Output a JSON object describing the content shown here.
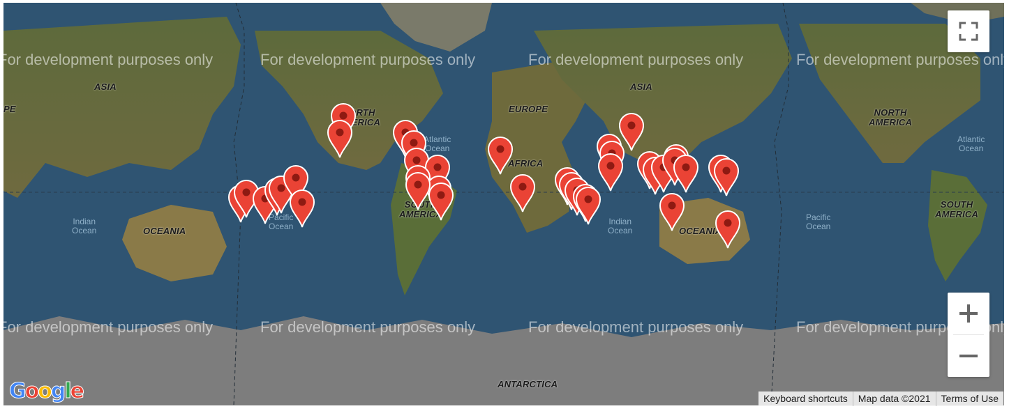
{
  "map": {
    "watermark": "For development purposes only",
    "continent_labels": {
      "asia": "ASIA",
      "europe_partial": "PE",
      "north_america": "NORTH\nAMERICA",
      "south_america": "SOUTH\nAMERICA",
      "africa": "AFRICA",
      "europe": "EUROPE",
      "asia2": "ASIA",
      "oceania": "OCEANIA",
      "north_america2": "NORTH\nAMERICA",
      "south_america2": "SOUTH\nAMERICA",
      "oceania2": "OCEANIA",
      "antarctica": "ANTARCTICA"
    },
    "ocean_labels": {
      "indian": "Indian\nOcean",
      "pacific": "Pacific\nOcean",
      "atlantic": "Atlantic\nOcean",
      "indian2": "Indian\nOcean",
      "pacific2": "Pacific\nOcean",
      "atlantic2": "Atlantic\nOcean"
    },
    "marker_color": "#ea4335",
    "marker_count": 52
  },
  "controls": {
    "fullscreen_icon": "fullscreen-icon",
    "zoom_in_icon": "plus-icon",
    "zoom_out_icon": "minus-icon"
  },
  "attribution": {
    "keyboard": "Keyboard shortcuts",
    "map_data": "Map data ©2021",
    "terms": "Terms of Use"
  },
  "logo": {
    "text": "Google"
  }
}
